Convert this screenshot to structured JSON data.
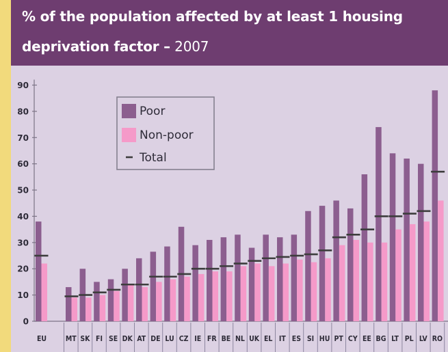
{
  "header": {
    "title_bold": "% of the population affected by at least 1 housing",
    "title_bold2": "deprivation factor –",
    "title_year": "2007"
  },
  "colors": {
    "poor": "#8c5e8f",
    "non_poor": "#f59ac9",
    "total": "#3d3d3d",
    "background": "#dcd1e3",
    "header": "#6e3d70"
  },
  "chart_data": {
    "type": "bar",
    "title": "% of the population affected by at least 1 housing deprivation factor – 2007",
    "xlabel": "",
    "ylabel": "",
    "ylim": [
      0,
      90
    ],
    "yticks": [
      0,
      10,
      20,
      30,
      40,
      50,
      60,
      70,
      80,
      90
    ],
    "legend_position": "top-left",
    "categories": [
      "EU",
      "MT",
      "SK",
      "FI",
      "SE",
      "DK",
      "AT",
      "DE",
      "LU",
      "CZ",
      "IE",
      "FR",
      "BE",
      "NL",
      "UK",
      "EL",
      "IT",
      "ES",
      "SI",
      "HU",
      "PT",
      "CY",
      "EE",
      "BG",
      "LT",
      "PL",
      "LV",
      "RO"
    ],
    "series": [
      {
        "name": "Poor",
        "type": "bar",
        "values": [
          38,
          13,
          20,
          15,
          16,
          20,
          24,
          26.5,
          28.5,
          36,
          29,
          31,
          32,
          33,
          28,
          33,
          32,
          33,
          42,
          44,
          46,
          43,
          56,
          74,
          64,
          62,
          60,
          88
        ]
      },
      {
        "name": "Non-poor",
        "type": "bar",
        "values": [
          22,
          9,
          9,
          10,
          11.5,
          14,
          13,
          15,
          16,
          17,
          18,
          19,
          19,
          21,
          22,
          21,
          22,
          23.5,
          22.5,
          24,
          29,
          31,
          30,
          30,
          35,
          37,
          38,
          46
        ]
      },
      {
        "name": "Total",
        "type": "marker",
        "values": [
          25,
          9.5,
          10,
          11,
          12,
          14,
          14,
          17,
          17,
          18,
          20,
          20,
          21,
          22,
          23,
          24,
          24.5,
          25,
          25.5,
          27,
          32,
          33,
          35,
          40,
          40,
          41,
          42,
          57
        ]
      }
    ]
  }
}
